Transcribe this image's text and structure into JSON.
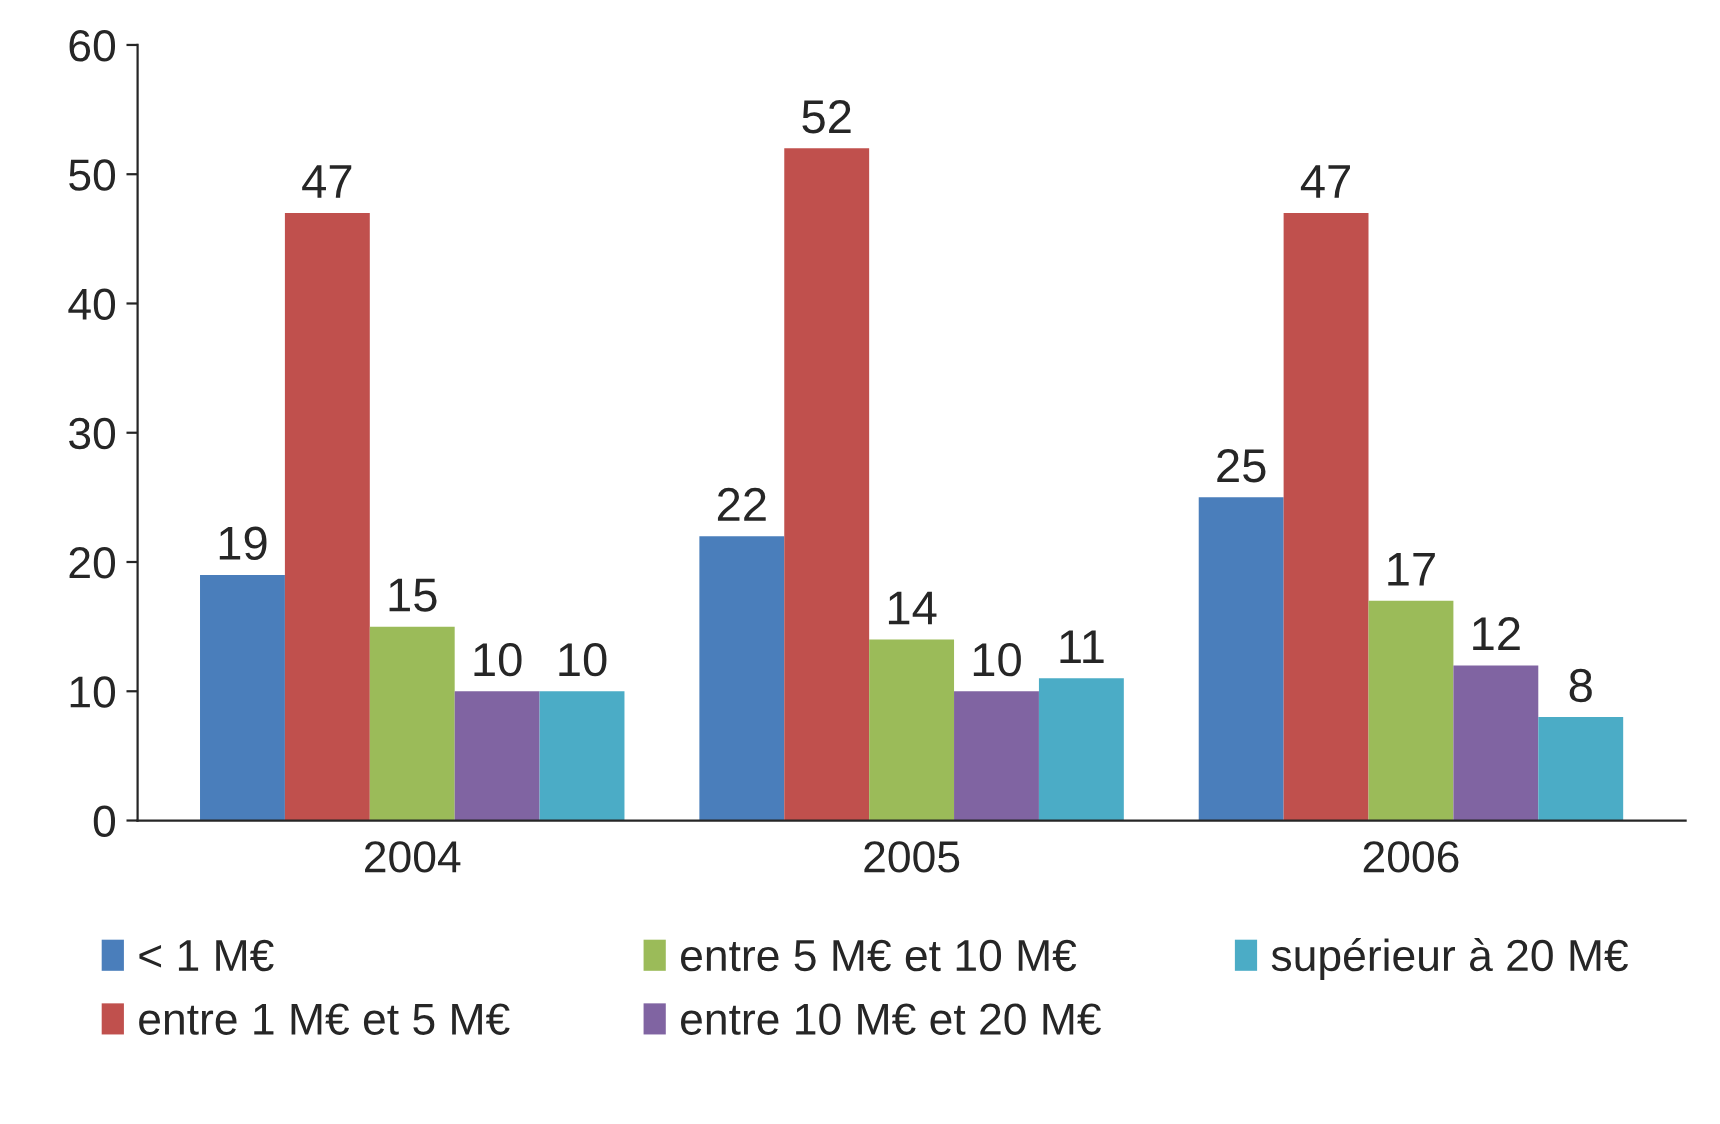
{
  "chart_data": {
    "type": "bar",
    "categories": [
      "2004",
      "2005",
      "2006"
    ],
    "series": [
      {
        "name": "< 1 M€",
        "color": "#4a7ebb",
        "values": [
          19,
          22,
          25
        ]
      },
      {
        "name": "entre 1 M€ et 5 M€",
        "color": "#c0504d",
        "values": [
          47,
          52,
          47
        ]
      },
      {
        "name": "entre 5 M€ et 10 M€",
        "color": "#9bbb59",
        "values": [
          15,
          14,
          17
        ]
      },
      {
        "name": "entre 10 M€ et 20 M€",
        "color": "#8064a2",
        "values": [
          10,
          10,
          12
        ]
      },
      {
        "name": "supérieur à 20 M€",
        "color": "#4bacc6",
        "values": [
          10,
          11,
          8
        ]
      }
    ],
    "ylim": [
      0,
      60
    ],
    "yticks": [
      0,
      10,
      20,
      30,
      40,
      50,
      60
    ],
    "data_labels": true,
    "grid": false,
    "legend": "bottom"
  }
}
